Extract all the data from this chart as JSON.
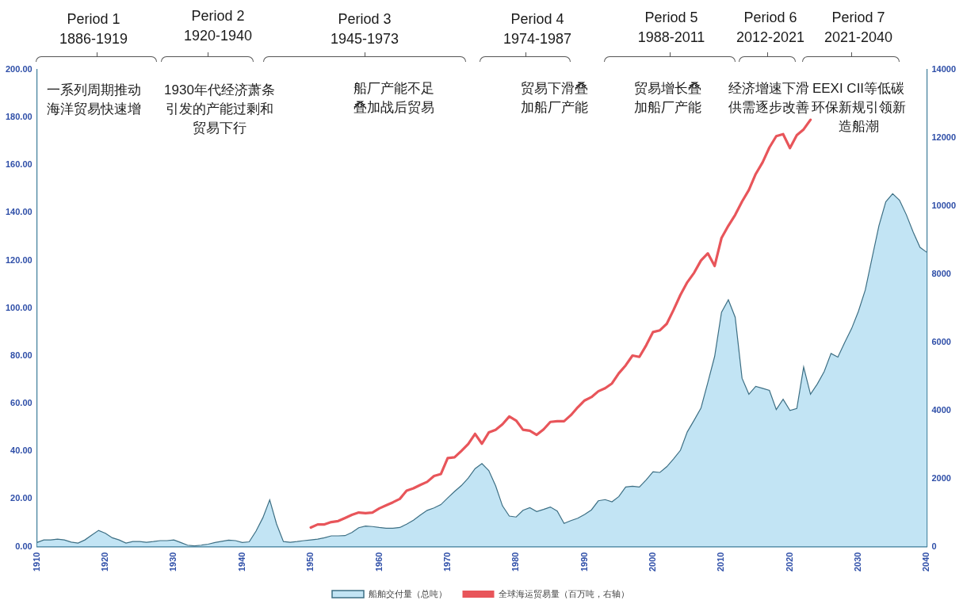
{
  "chart_data": {
    "type": "area",
    "annotations": [
      "Period 1",
      "1886-1919",
      "一系列周期推动海洋贸易快速增",
      "Period 2",
      "1920-1940",
      "1930年代经济萧条引发的产能过剩和贸易下行",
      "Period 3",
      "1945-1973",
      "船厂产能不足叠加战后贸易",
      "Period 4",
      "1974-1987",
      "贸易下滑叠加船厂产能",
      "Period 5",
      "1988-2011",
      "贸易增长叠加船厂产能",
      "Period 6",
      "2012-2021",
      "经济增速下滑供需逐步改善",
      "Period 7",
      "2021-2040",
      "EEXI CII等低碳环保新规引领新造船潮"
    ],
    "xlim": [
      1910,
      2040
    ],
    "xticks": [
      1910,
      1920,
      1930,
      1940,
      1950,
      1960,
      1970,
      1980,
      1990,
      2000,
      2010,
      2020,
      2030,
      2040
    ],
    "ylim": [
      0,
      200
    ],
    "yticks": [
      {
        "value": 0,
        "label": "0.00"
      },
      {
        "value": 20,
        "label": "20.00"
      },
      {
        "value": 40,
        "label": "40.00"
      },
      {
        "value": 60,
        "label": "60.00"
      },
      {
        "value": 80,
        "label": "80.00"
      },
      {
        "value": 100,
        "label": "100.00"
      },
      {
        "value": 120,
        "label": "120.00"
      },
      {
        "value": 140,
        "label": "140.00"
      },
      {
        "value": 160,
        "label": "160.00"
      },
      {
        "value": 180,
        "label": "180.00"
      },
      {
        "value": 200,
        "label": "200.00"
      }
    ],
    "y2lim": [
      0,
      14000
    ],
    "y2ticks": [
      0,
      2000,
      4000,
      6000,
      8000,
      10000,
      12000,
      14000
    ],
    "legend": "bottom",
    "grid": false,
    "series": [
      {
        "name": "船舶交付量（总吨）",
        "type": "area",
        "color": "#c2e4f4",
        "x": [
          1910,
          1911,
          1912,
          1913,
          1914,
          1915,
          1916,
          1917,
          1918,
          1919,
          1920,
          1921,
          1922,
          1923,
          1924,
          1925,
          1926,
          1927,
          1928,
          1929,
          1930,
          1931,
          1932,
          1933,
          1934,
          1935,
          1936,
          1937,
          1938,
          1939,
          1940,
          1941,
          1942,
          1943,
          1944,
          1945,
          1946,
          1947,
          1948,
          1949,
          1950,
          1951,
          1952,
          1953,
          1954,
          1955,
          1956,
          1957,
          1958,
          1959,
          1960,
          1961,
          1962,
          1963,
          1964,
          1965,
          1966,
          1967,
          1968,
          1969,
          1970,
          1971,
          1972,
          1973,
          1974,
          1975,
          1976,
          1977,
          1978,
          1979,
          1980,
          1981,
          1982,
          1983,
          1984,
          1985,
          1986,
          1987,
          1988,
          1989,
          1990,
          1991,
          1992,
          1993,
          1994,
          1995,
          1996,
          1997,
          1998,
          1999,
          2000,
          2001,
          2002,
          2003,
          2004,
          2005,
          2006,
          2007,
          2008,
          2009,
          2010,
          2011,
          2012,
          2013,
          2014,
          2015,
          2016,
          2017,
          2018,
          2019,
          2020,
          2021,
          2022,
          2023,
          2024,
          2025,
          2026,
          2027,
          2028,
          2029,
          2030,
          2031,
          2032,
          2033,
          2034,
          2035,
          2036,
          2037,
          2038,
          2039,
          2040
        ],
        "values": [
          1.7,
          2.8,
          2.8,
          3.1,
          2.8,
          1.9,
          1.5,
          2.8,
          4.8,
          6.8,
          5.6,
          3.7,
          2.8,
          1.5,
          2.1,
          2.1,
          1.8,
          2.1,
          2.5,
          2.5,
          2.8,
          1.7,
          0.6,
          0.3,
          0.6,
          1.0,
          1.7,
          2.2,
          2.7,
          2.5,
          1.7,
          2.0,
          6.5,
          12.1,
          19.6,
          9.5,
          2.1,
          1.8,
          2.1,
          2.5,
          2.8,
          3.1,
          3.7,
          4.5,
          4.5,
          4.6,
          5.9,
          7.9,
          8.6,
          8.4,
          8.0,
          7.7,
          7.7,
          8.0,
          9.4,
          11.1,
          13.2,
          15.2,
          16.2,
          17.6,
          20.4,
          23.1,
          25.6,
          28.7,
          32.7,
          34.8,
          31.9,
          25.5,
          17.1,
          12.8,
          12.4,
          15.2,
          16.3,
          14.7,
          15.6,
          16.6,
          14.9,
          9.7,
          10.9,
          11.9,
          13.5,
          15.4,
          19.2,
          19.7,
          18.8,
          21.0,
          25.0,
          25.3,
          25.0,
          28.0,
          31.4,
          31.1,
          33.5,
          36.8,
          40.4,
          48.1,
          53.0,
          58.1,
          68.8,
          79.8,
          98.3,
          103.5,
          96.2,
          70.6,
          63.9,
          67.2,
          66.4,
          65.5,
          57.5,
          61.8,
          57.1,
          57.9,
          75.3,
          63.9,
          68.2,
          73.4,
          81.0,
          79.5,
          85.6,
          91.4,
          98.7,
          107.6,
          121.2,
          134.6,
          144.6,
          148.0,
          145.3,
          139.2,
          131.9,
          125.5,
          123.4
        ]
      },
      {
        "name": "全球海运贸易量（百万吨，右轴）",
        "type": "line",
        "axis": "y2",
        "color": "#e8555a",
        "x": [
          1950,
          1951,
          1952,
          1953,
          1954,
          1955,
          1956,
          1957,
          1958,
          1959,
          1960,
          1961,
          1962,
          1963,
          1964,
          1965,
          1966,
          1967,
          1968,
          1969,
          1970,
          1971,
          1972,
          1973,
          1974,
          1975,
          1976,
          1977,
          1978,
          1979,
          1980,
          1981,
          1982,
          1983,
          1984,
          1985,
          1986,
          1987,
          1988,
          1989,
          1990,
          1991,
          1992,
          1993,
          1994,
          1995,
          1996,
          1997,
          1998,
          1999,
          2000,
          2001,
          2002,
          2003,
          2004,
          2005,
          2006,
          2007,
          2008,
          2009,
          2010,
          2011,
          2012,
          2013,
          2014,
          2015,
          2016,
          2017,
          2018,
          2019,
          2020,
          2021,
          2022,
          2023
        ],
        "values": [
          560,
          650,
          650,
          720,
          750,
          840,
          930,
          1000,
          980,
          1000,
          1120,
          1210,
          1300,
          1400,
          1640,
          1710,
          1810,
          1900,
          2070,
          2130,
          2600,
          2620,
          2810,
          3010,
          3310,
          3020,
          3350,
          3430,
          3590,
          3820,
          3700,
          3430,
          3400,
          3280,
          3440,
          3660,
          3680,
          3680,
          3860,
          4090,
          4290,
          4390,
          4560,
          4650,
          4790,
          5090,
          5320,
          5610,
          5570,
          5910,
          6300,
          6350,
          6540,
          6950,
          7390,
          7760,
          8040,
          8400,
          8610,
          8240,
          9060,
          9420,
          9740,
          10130,
          10470,
          10940,
          11280,
          11720,
          12050,
          12110,
          11700,
          12080,
          12250,
          12530
        ]
      }
    ]
  }
}
